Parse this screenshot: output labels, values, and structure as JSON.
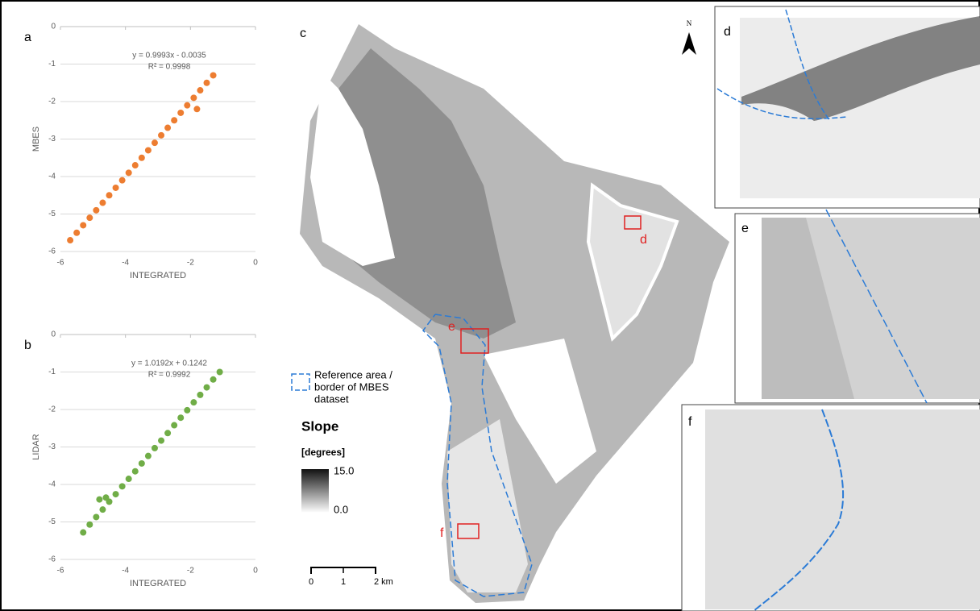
{
  "chart_data": [
    {
      "type": "scatter",
      "panel": "a",
      "xlabel": "INTEGRATED",
      "ylabel": "MBES",
      "color": "#ed7d31",
      "annotations": [
        "y = 0.9993x - 0.0035",
        "R² = 0.9998"
      ],
      "x": [
        -5.7,
        -5.5,
        -5.3,
        -5.1,
        -4.9,
        -4.7,
        -4.5,
        -4.3,
        -4.1,
        -3.9,
        -3.7,
        -3.5,
        -3.3,
        -3.1,
        -2.9,
        -2.7,
        -2.5,
        -2.3,
        -2.1,
        -1.9,
        -1.7,
        -1.5,
        -1.3,
        -1.8
      ],
      "values": [
        -5.7,
        -5.5,
        -5.3,
        -5.1,
        -4.9,
        -4.7,
        -4.5,
        -4.3,
        -4.1,
        -3.9,
        -3.7,
        -3.5,
        -3.3,
        -3.1,
        -2.9,
        -2.7,
        -2.5,
        -2.3,
        -2.1,
        -1.9,
        -1.7,
        -1.5,
        -1.3,
        -2.2
      ],
      "xlim": [
        -6,
        0
      ],
      "xticks": [
        -6,
        -4,
        -2,
        0
      ],
      "ylim": [
        -6,
        0
      ],
      "yticks": [
        -6,
        -5,
        -4,
        -3,
        -2,
        -1,
        0
      ],
      "grid": true
    },
    {
      "type": "scatter",
      "panel": "b",
      "xlabel": "INTEGRATED",
      "ylabel": "LIDAR",
      "color": "#70ad47",
      "annotations": [
        "y = 1.0192x + 0.1242",
        "R² = 0.9992"
      ],
      "x": [
        -5.3,
        -5.1,
        -4.9,
        -4.7,
        -4.5,
        -4.3,
        -4.1,
        -3.9,
        -3.7,
        -3.5,
        -3.3,
        -3.1,
        -2.9,
        -2.7,
        -2.5,
        -2.3,
        -2.1,
        -1.9,
        -1.7,
        -1.5,
        -1.3,
        -1.1,
        -4.8,
        -4.6
      ],
      "values": [
        -5.28,
        -5.07,
        -4.87,
        -4.67,
        -4.46,
        -4.26,
        -4.05,
        -3.85,
        -3.65,
        -3.44,
        -3.24,
        -3.03,
        -2.83,
        -2.63,
        -2.42,
        -2.22,
        -2.02,
        -1.81,
        -1.61,
        -1.41,
        -1.2,
        -1.0,
        -4.4,
        -4.35
      ],
      "xlim": [
        -6,
        0
      ],
      "xticks": [
        -6,
        -4,
        -2,
        0
      ],
      "ylim": [
        -6,
        0
      ],
      "yticks": [
        -6,
        -5,
        -4,
        -3,
        -2,
        -1,
        0
      ],
      "grid": true
    }
  ],
  "map": {
    "panel": "c",
    "north": "N",
    "box_labels": [
      "d",
      "e",
      "f"
    ],
    "legend": [
      "Reference area /",
      "border of MBES",
      "dataset"
    ],
    "colorbar": {
      "title": "Slope",
      "unit": "[degrees]",
      "max": "15.0",
      "min": "0.0"
    },
    "scalebar": [
      "0",
      "1",
      "2 km"
    ]
  },
  "insets": [
    "d",
    "e",
    "f"
  ]
}
